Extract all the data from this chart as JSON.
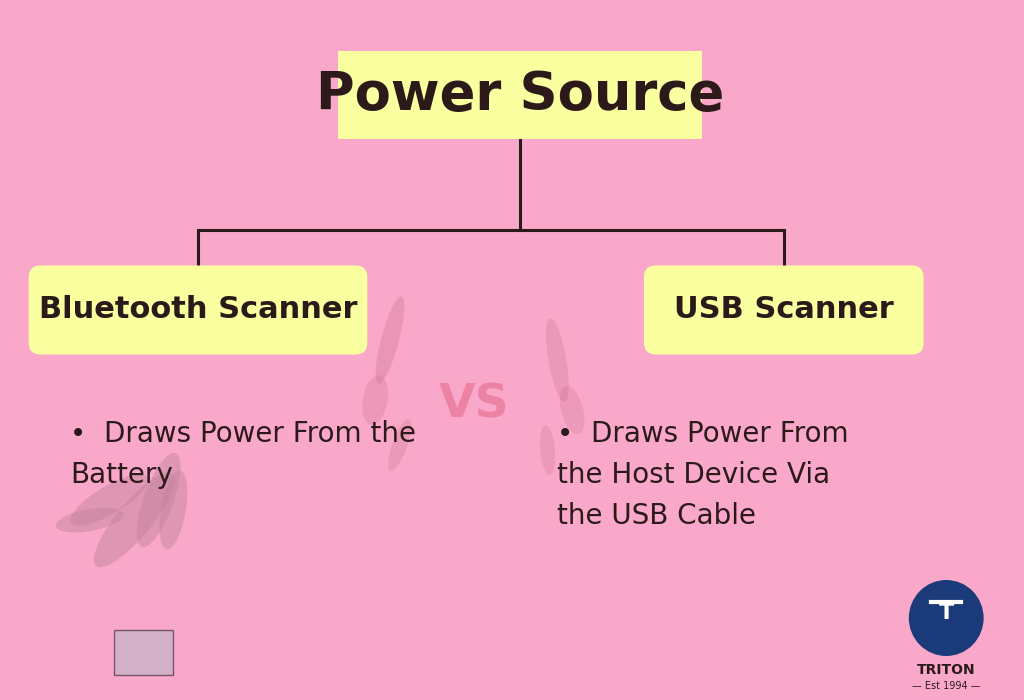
{
  "background_color": "#F9A8C9",
  "title": "Power Source",
  "title_bg": "#FAFFA0",
  "title_color": "#2C1A1A",
  "title_fontsize": 38,
  "left_label": "Bluetooth Scanner",
  "right_label": "USB Scanner",
  "label_bg": "#FAFFA0",
  "label_color": "#2C1A1A",
  "label_fontsize": 22,
  "left_bullet": "Draws Power From the\nBattery",
  "right_bullet": "Draws Power From\nthe Host Device Via\nthe USB Cable",
  "bullet_fontsize": 20,
  "bullet_color": "#2C1A1A",
  "line_color": "#2C1A1A",
  "triton_circle_color": "#1B3A7A",
  "triton_text": "TRITON",
  "triton_sub": "Est 1994"
}
